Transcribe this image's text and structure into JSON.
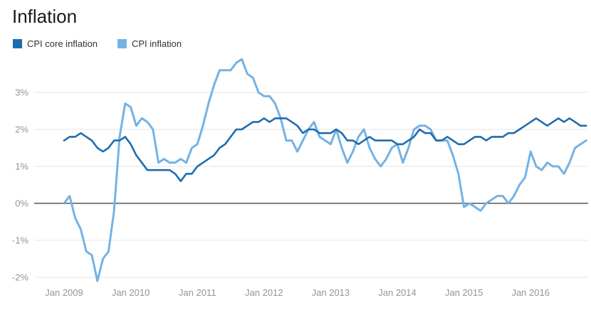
{
  "title": "Inflation",
  "legend": [
    {
      "label": "CPI core inflation",
      "color": "#1e6cb0"
    },
    {
      "label": "CPI inflation",
      "color": "#74b2e4"
    }
  ],
  "chart_data": {
    "type": "line",
    "title": "Inflation",
    "xlabel": "",
    "ylabel": "",
    "ylim": [
      -2.5,
      3.95
    ],
    "grid": "horizontal",
    "legend_position": "top-left",
    "zero_line": true,
    "y_ticks": [
      {
        "value": 3,
        "label": "3%"
      },
      {
        "value": 2,
        "label": "2%"
      },
      {
        "value": 1,
        "label": "1%"
      },
      {
        "value": 0,
        "label": "0%"
      },
      {
        "value": -1,
        "label": "-1%"
      },
      {
        "value": -2,
        "label": "-2%"
      }
    ],
    "x_ticks": [
      {
        "month_index": 0,
        "label": "Jan 2009"
      },
      {
        "month_index": 12,
        "label": "Jan 2010"
      },
      {
        "month_index": 24,
        "label": "Jan 2011"
      },
      {
        "month_index": 36,
        "label": "Jan 2012"
      },
      {
        "month_index": 48,
        "label": "Jan 2013"
      },
      {
        "month_index": 60,
        "label": "Jan 2014"
      },
      {
        "month_index": 72,
        "label": "Jan 2015"
      },
      {
        "month_index": 84,
        "label": "Jan 2016"
      }
    ],
    "x": [
      "2009-01",
      "2009-02",
      "2009-03",
      "2009-04",
      "2009-05",
      "2009-06",
      "2009-07",
      "2009-08",
      "2009-09",
      "2009-10",
      "2009-11",
      "2009-12",
      "2010-01",
      "2010-02",
      "2010-03",
      "2010-04",
      "2010-05",
      "2010-06",
      "2010-07",
      "2010-08",
      "2010-09",
      "2010-10",
      "2010-11",
      "2010-12",
      "2011-01",
      "2011-02",
      "2011-03",
      "2011-04",
      "2011-05",
      "2011-06",
      "2011-07",
      "2011-08",
      "2011-09",
      "2011-10",
      "2011-11",
      "2011-12",
      "2012-01",
      "2012-02",
      "2012-03",
      "2012-04",
      "2012-05",
      "2012-06",
      "2012-07",
      "2012-08",
      "2012-09",
      "2012-10",
      "2012-11",
      "2012-12",
      "2013-01",
      "2013-02",
      "2013-03",
      "2013-04",
      "2013-05",
      "2013-06",
      "2013-07",
      "2013-08",
      "2013-09",
      "2013-10",
      "2013-11",
      "2013-12",
      "2014-01",
      "2014-02",
      "2014-03",
      "2014-04",
      "2014-05",
      "2014-06",
      "2014-07",
      "2014-08",
      "2014-09",
      "2014-10",
      "2014-11",
      "2014-12",
      "2015-01",
      "2015-02",
      "2015-03",
      "2015-04",
      "2015-05",
      "2015-06",
      "2015-07",
      "2015-08",
      "2015-09",
      "2015-10",
      "2015-11",
      "2015-12",
      "2016-01",
      "2016-02",
      "2016-03",
      "2016-04",
      "2016-05",
      "2016-06",
      "2016-07",
      "2016-08",
      "2016-09",
      "2016-10",
      "2016-11"
    ],
    "series": [
      {
        "name": "CPI core inflation",
        "color": "#1e6cb0",
        "values": [
          1.7,
          1.8,
          1.8,
          1.9,
          1.8,
          1.7,
          1.5,
          1.4,
          1.5,
          1.7,
          1.7,
          1.8,
          1.6,
          1.3,
          1.1,
          0.9,
          0.9,
          0.9,
          0.9,
          0.9,
          0.8,
          0.6,
          0.8,
          0.8,
          1.0,
          1.1,
          1.2,
          1.3,
          1.5,
          1.6,
          1.8,
          2.0,
          2.0,
          2.1,
          2.2,
          2.2,
          2.3,
          2.2,
          2.3,
          2.3,
          2.3,
          2.2,
          2.1,
          1.9,
          2.0,
          2.0,
          1.9,
          1.9,
          1.9,
          2.0,
          1.9,
          1.7,
          1.7,
          1.6,
          1.7,
          1.8,
          1.7,
          1.7,
          1.7,
          1.7,
          1.6,
          1.6,
          1.7,
          1.8,
          2.0,
          1.9,
          1.9,
          1.7,
          1.7,
          1.8,
          1.7,
          1.6,
          1.6,
          1.7,
          1.8,
          1.8,
          1.7,
          1.8,
          1.8,
          1.8,
          1.9,
          1.9,
          2.0,
          2.1,
          2.2,
          2.3,
          2.2,
          2.1,
          2.2,
          2.3,
          2.2,
          2.3,
          2.2,
          2.1,
          2.1
        ]
      },
      {
        "name": "CPI inflation",
        "color": "#74b2e4",
        "values": [
          0.0,
          0.2,
          -0.4,
          -0.7,
          -1.3,
          -1.4,
          -2.1,
          -1.5,
          -1.3,
          -0.2,
          1.8,
          2.7,
          2.6,
          2.1,
          2.3,
          2.2,
          2.0,
          1.1,
          1.2,
          1.1,
          1.1,
          1.2,
          1.1,
          1.5,
          1.6,
          2.1,
          2.7,
          3.2,
          3.6,
          3.6,
          3.6,
          3.8,
          3.9,
          3.5,
          3.4,
          3.0,
          2.9,
          2.9,
          2.7,
          2.3,
          1.7,
          1.7,
          1.4,
          1.7,
          2.0,
          2.2,
          1.8,
          1.7,
          1.6,
          2.0,
          1.5,
          1.1,
          1.4,
          1.8,
          2.0,
          1.5,
          1.2,
          1.0,
          1.2,
          1.5,
          1.6,
          1.1,
          1.5,
          2.0,
          2.1,
          2.1,
          2.0,
          1.7,
          1.7,
          1.7,
          1.3,
          0.8,
          -0.1,
          0.0,
          -0.1,
          -0.2,
          0.0,
          0.1,
          0.2,
          0.2,
          0.0,
          0.2,
          0.5,
          0.7,
          1.4,
          1.0,
          0.9,
          1.1,
          1.0,
          1.0,
          0.8,
          1.1,
          1.5,
          1.6,
          1.7
        ]
      }
    ]
  }
}
